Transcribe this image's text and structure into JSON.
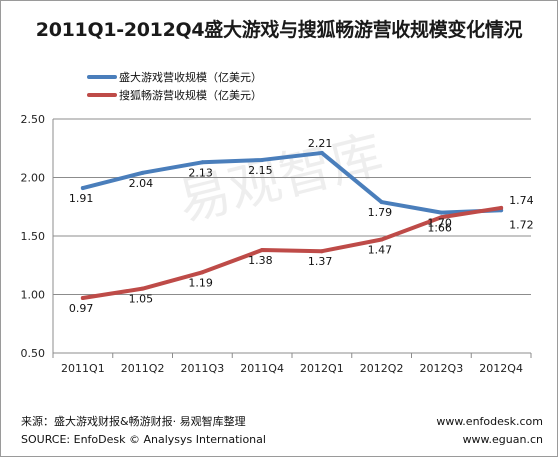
{
  "title": "2011Q1-2012Q4盛大游戏与搜狐畅游营收规模变化情况",
  "watermark": "易观智库",
  "footer": {
    "source_cn": "来源：盛大游戏财报&畅游财报· 易观智库整理",
    "source_en": "SOURCE:  EnfoDesk © Analysys International",
    "site1": "www.enfodesk.com",
    "site2": "www.eguan.cn"
  },
  "colors": {
    "shanda": "#4a7ebb",
    "changyou": "#be4b48"
  },
  "chart_data": {
    "type": "line",
    "title": "2011Q1-2012Q4盛大游戏与搜狐畅游营收规模变化情况",
    "xlabel": "",
    "ylabel": "",
    "categories": [
      "2011Q1",
      "2011Q2",
      "2011Q3",
      "2011Q4",
      "2012Q1",
      "2012Q2",
      "2012Q3",
      "2012Q4"
    ],
    "ylim": [
      0.5,
      2.5
    ],
    "yticks": [
      "0.50",
      "1.00",
      "1.50",
      "2.00",
      "2.50"
    ],
    "grid": true,
    "legend": "top-left",
    "series": [
      {
        "name": "盛大游戏营收规模（亿美元）",
        "values": [
          1.91,
          2.04,
          2.13,
          2.15,
          2.21,
          1.79,
          1.7,
          1.72
        ],
        "labels": [
          "1.91",
          "2.04",
          "2.13",
          "2.15",
          "2.21",
          "1.79",
          "1.70",
          "1.72"
        ]
      },
      {
        "name": "搜狐畅游营收规模（亿美元）",
        "values": [
          0.97,
          1.05,
          1.19,
          1.38,
          1.37,
          1.47,
          1.66,
          1.74
        ],
        "labels": [
          "0.97",
          "1.05",
          "1.19",
          "1.38",
          "1.37",
          "1.47",
          "1.66",
          "1.74"
        ]
      }
    ]
  }
}
